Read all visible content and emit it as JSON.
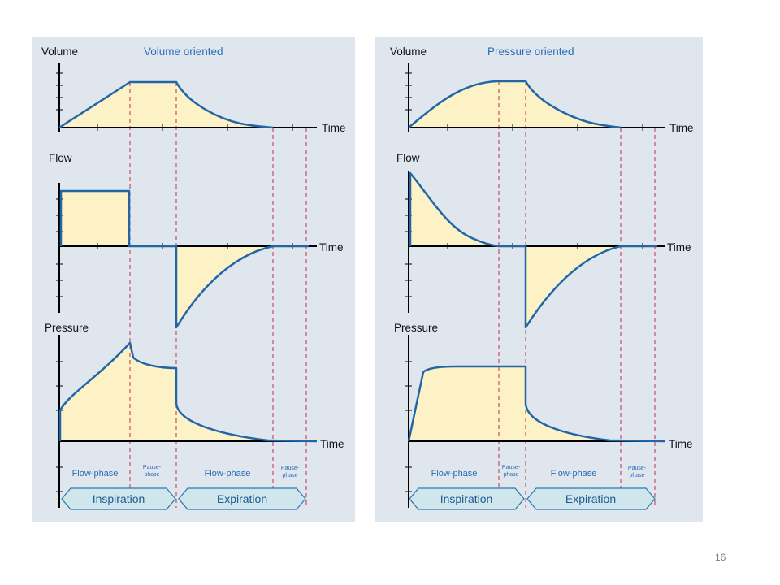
{
  "left_panel": {
    "title": "Volume oriented",
    "volume_label": "Volume",
    "flow_label": "Flow",
    "pressure_label": "Pressure",
    "time_label": "Time",
    "phase_1": "Flow-phase",
    "phase_2_line1": "Pause-",
    "phase_2_line2": "phase",
    "phase_3": "Flow-phase",
    "phase_4_line1": "Pause-",
    "phase_4_line2": "phase",
    "inspiration": "Inspiration",
    "expiration": "Expiration"
  },
  "right_panel": {
    "title": "Pressure oriented",
    "volume_label": "Volume",
    "flow_label": "Flow",
    "pressure_label": "Pressure",
    "time_label": "Time",
    "phase_1": "Flow-phase",
    "phase_2_line1": "Pause-",
    "phase_2_line2": "phase",
    "phase_3": "Flow-phase",
    "phase_4_line1": "Pause-",
    "phase_4_line2": "phase",
    "inspiration": "Inspiration",
    "expiration": "Expiration"
  },
  "page_number": "16",
  "colors": {
    "panel_bg": "#dfe6ee",
    "curve": "#2266a8",
    "fill": "#fdf1c6",
    "dashed": "#c0304a",
    "title": "#2b6cb5",
    "arrow_fill": "#cfe6ec",
    "arrow_stroke": "#2a78b0"
  }
}
